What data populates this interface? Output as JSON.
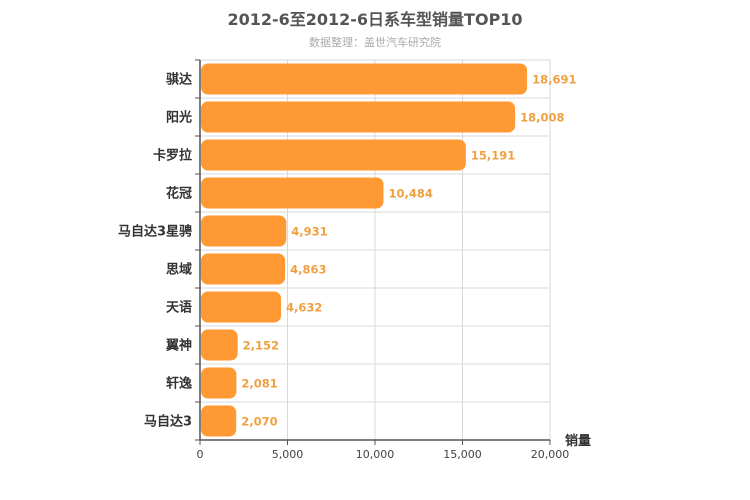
{
  "chart_data": {
    "type": "bar",
    "orientation": "horizontal",
    "title": "2012-6至2012-6日系车型销量TOP10",
    "subtitle": "数据整理：盖世汽车研究院",
    "xlabel": "销量",
    "ylabel": "",
    "categories": [
      "骐达",
      "阳光",
      "卡罗拉",
      "花冠",
      "马自达3星骋",
      "思域",
      "天语",
      "翼神",
      "轩逸",
      "马自达3"
    ],
    "values": [
      18691,
      18008,
      15191,
      10484,
      4931,
      4863,
      4632,
      2152,
      2081,
      2070
    ],
    "value_labels": [
      "18,691",
      "18,008",
      "15,191",
      "10,484",
      "4,931",
      "4,863",
      "4,632",
      "2,152",
      "2,081",
      "2,070"
    ],
    "xlim": [
      0,
      20000
    ],
    "x_ticks": [
      0,
      5000,
      10000,
      15000,
      20000
    ],
    "x_tick_labels": [
      "0",
      "5,000",
      "10,000",
      "15,000",
      "20,000"
    ],
    "grid": true,
    "colors": {
      "bar": "#ff9933",
      "label": "#f0a040",
      "grid": "#d8d8d8",
      "axis": "#555555"
    }
  }
}
